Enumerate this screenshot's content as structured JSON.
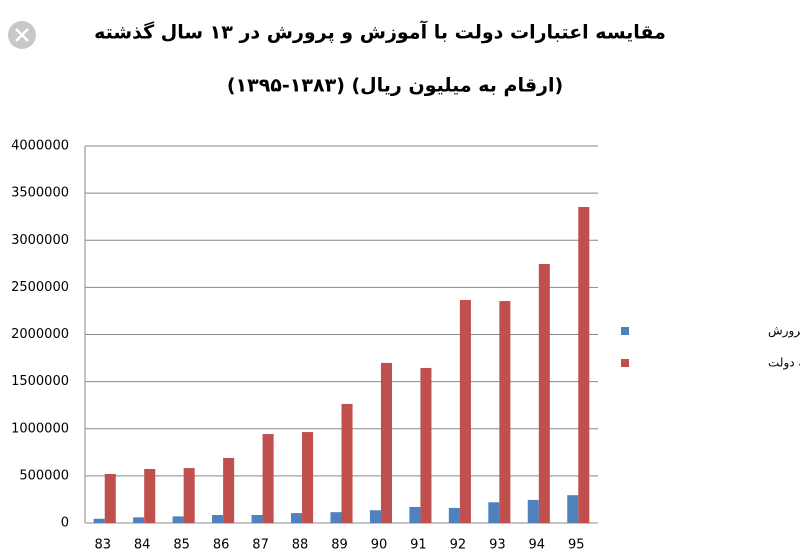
{
  "chart_data": {
    "type": "bar",
    "title": "مقایسه اعتبارات دولت با آموزش و پرورش در ۱۳ سال گذشته",
    "subtitle": "(ارقام به میلیون ریال) (۱۳۸۳-۱۳۹۵)",
    "categories": [
      "83",
      "84",
      "85",
      "86",
      "87",
      "88",
      "89",
      "90",
      "91",
      "92",
      "93",
      "94",
      "95"
    ],
    "series": [
      {
        "name": "بودجه آموزش و پرورش",
        "color": "#4f81bd",
        "values": [
          45000,
          60000,
          70000,
          85000,
          85000,
          105000,
          115000,
          135000,
          170000,
          160000,
          220000,
          245000,
          295000
        ]
      },
      {
        "name": "بودجه دولت",
        "color": "#c0504d",
        "values": [
          520000,
          573000,
          583000,
          690000,
          944000,
          965000,
          1263000,
          1698000,
          1645000,
          2366000,
          2355000,
          2748000,
          3353000
        ]
      }
    ],
    "ylim": [
      0,
      4000000
    ],
    "yticks": [
      0,
      500000,
      1000000,
      1500000,
      2000000,
      2500000,
      3000000,
      3500000,
      4000000
    ],
    "grid": true,
    "legend": "right"
  }
}
